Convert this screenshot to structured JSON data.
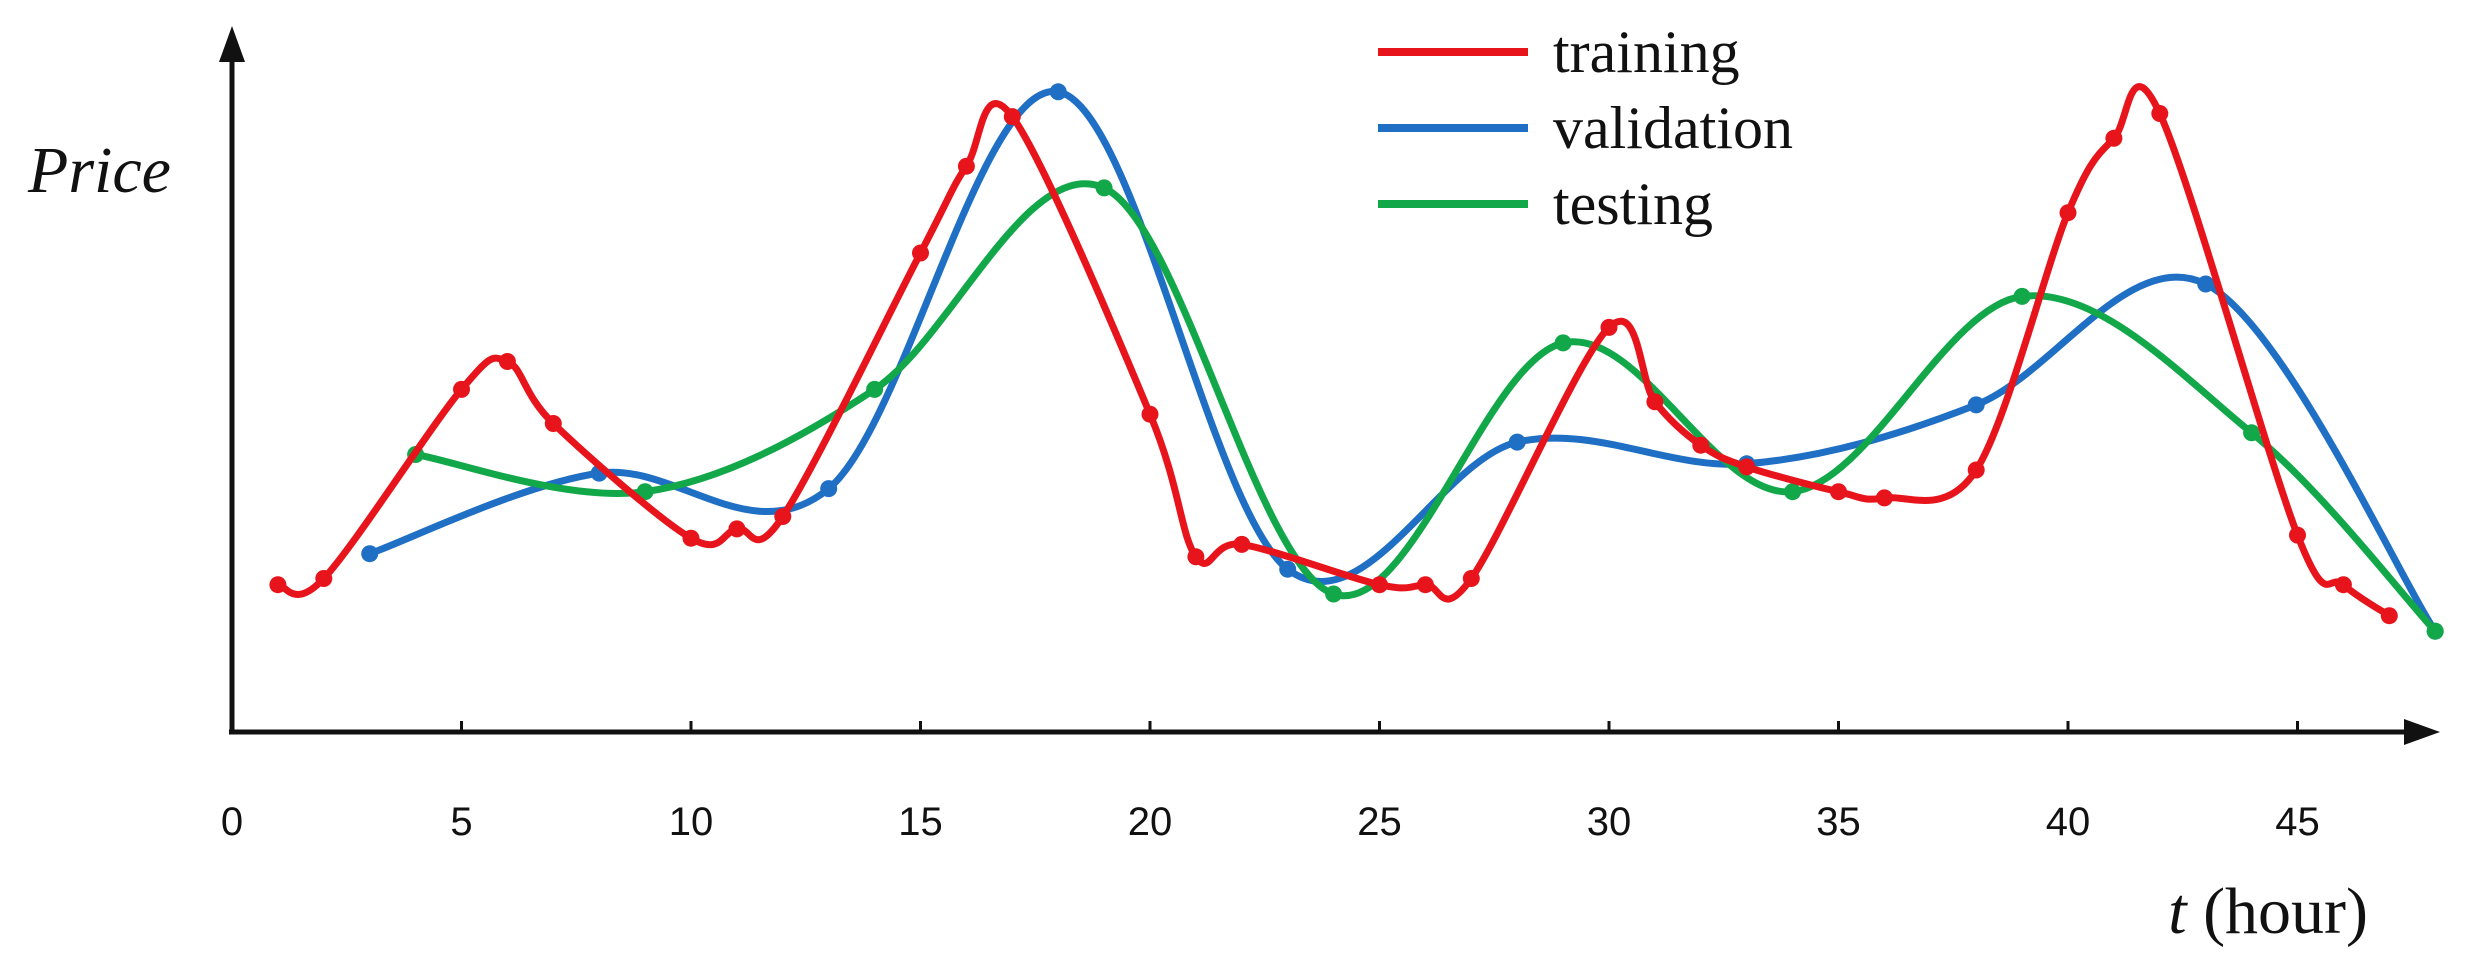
{
  "chart_data": {
    "type": "line",
    "ylabel": "Price",
    "xlabel_var": "t",
    "xlabel_unit": " (hour)",
    "xlim": [
      0,
      48
    ],
    "ylim": [
      0,
      100
    ],
    "y_tick_labels": false,
    "grid": false,
    "legend_position": "top-center",
    "x_ticks": [
      {
        "value": 0,
        "label": "0"
      },
      {
        "value": 5,
        "label": "5"
      },
      {
        "value": 10,
        "label": "10"
      },
      {
        "value": 15,
        "label": "15"
      },
      {
        "value": 20,
        "label": "20"
      },
      {
        "value": 25,
        "label": "25"
      },
      {
        "value": 30,
        "label": "30"
      },
      {
        "value": 35,
        "label": "35"
      },
      {
        "value": 40,
        "label": "40"
      },
      {
        "value": 45,
        "label": "45"
      }
    ],
    "series": [
      {
        "name": "training",
        "color": "#e8141c",
        "points": [
          [
            1,
            21.5
          ],
          [
            2,
            22.5
          ],
          [
            5,
            53.0
          ],
          [
            6,
            57.5
          ],
          [
            7,
            47.5
          ],
          [
            10,
            29.0
          ],
          [
            11,
            30.5
          ],
          [
            12,
            32.5
          ],
          [
            15,
            75.0
          ],
          [
            16,
            89.0
          ],
          [
            17,
            97.0
          ],
          [
            20,
            49.0
          ],
          [
            21,
            26.0
          ],
          [
            22,
            28.0
          ],
          [
            25,
            21.5
          ],
          [
            26,
            21.5
          ],
          [
            27,
            22.5
          ],
          [
            30,
            63.0
          ],
          [
            31,
            51.0
          ],
          [
            32,
            44.0
          ],
          [
            33,
            40.5
          ],
          [
            35,
            36.5
          ],
          [
            36,
            35.5
          ],
          [
            38,
            40.0
          ],
          [
            40,
            81.5
          ],
          [
            41,
            93.5
          ],
          [
            42,
            97.5
          ],
          [
            45,
            29.5
          ],
          [
            46,
            21.5
          ],
          [
            47,
            16.5
          ]
        ]
      },
      {
        "name": "validation",
        "color": "#1f6fc5",
        "points": [
          [
            3,
            26.5
          ],
          [
            8,
            39.5
          ],
          [
            13,
            37.0
          ],
          [
            18,
            101.0
          ],
          [
            23,
            24.0
          ],
          [
            28,
            44.5
          ],
          [
            33,
            41.0
          ],
          [
            38,
            50.5
          ],
          [
            43,
            70.0
          ],
          [
            48,
            14.0
          ]
        ]
      },
      {
        "name": "testing",
        "color": "#12a84a",
        "points": [
          [
            4,
            42.5
          ],
          [
            9,
            36.5
          ],
          [
            14,
            53.0
          ],
          [
            19,
            85.5
          ],
          [
            24,
            20.0
          ],
          [
            29,
            60.5
          ],
          [
            34,
            36.5
          ],
          [
            39,
            68.0
          ],
          [
            44,
            46.0
          ],
          [
            48,
            14.0
          ]
        ]
      }
    ]
  }
}
